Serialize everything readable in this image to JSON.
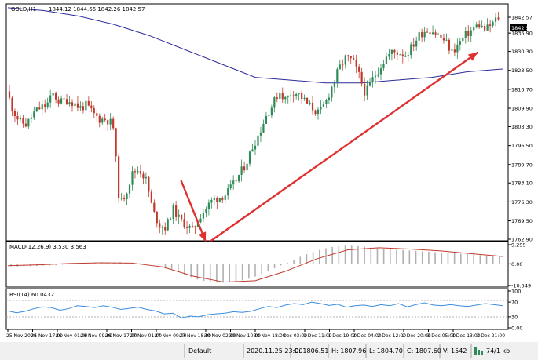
{
  "chart_data": [
    {
      "type": "candlestick",
      "header": {
        "symbol_tf": "GOLD,H1",
        "ohlc": "1844.12 1844.66 1842.26 1842.57"
      },
      "current_price": "1842.57",
      "price_axis": {
        "ticks": [
          "1842.57",
          "1836.90",
          "1830.30",
          "1823.50",
          "1816.70",
          "1809.90",
          "1803.30",
          "1796.50",
          "1789.70",
          "1783.10",
          "1776.30",
          "1769.50",
          "1762.90"
        ]
      },
      "time_axis": {
        "ticks": [
          "25 Nov 2020",
          "25 Nov 17:00",
          "26 Nov 01:00",
          "26 Nov 09:00",
          "26 Nov 17:00",
          "27 Nov 01:00",
          "27 Nov 09:00",
          "27 Nov 18:00",
          "30 Nov 02:00",
          "30 Nov 10:00",
          "30 Nov 18:00",
          "1 Dec 03:00",
          "1 Dec 11:00",
          "1 Dec 19:00",
          "2 Dec 04:00",
          "2 Dec 12:00",
          "2 Dec 20:00",
          "3 Dec 05:00",
          "3 Dec 13:00",
          "3 Dec 21:00"
        ]
      },
      "close_path": [
        1816,
        1809,
        1805,
        1804,
        1808,
        1810,
        1811,
        1815,
        1812,
        1813,
        1812,
        1810,
        1811,
        1808,
        1806,
        1806,
        1804,
        1775,
        1780,
        1787,
        1788,
        1784,
        1773,
        1768,
        1767,
        1774,
        1770,
        1768,
        1766,
        1771,
        1774,
        1777,
        1778,
        1779,
        1782,
        1786,
        1790,
        1796,
        1801,
        1807,
        1811,
        1816,
        1813,
        1816,
        1815,
        1812,
        1810,
        1808,
        1812,
        1818,
        1824,
        1828,
        1827,
        1822,
        1815,
        1820,
        1824,
        1828,
        1830,
        1830,
        1829,
        1832,
        1836,
        1838,
        1838,
        1836,
        1834,
        1830,
        1833,
        1836,
        1838,
        1840,
        1838,
        1840,
        1842.57
      ],
      "moving_average": {
        "color": "#2b2b9a",
        "values": [
          1846,
          1845,
          1843,
          1840,
          1836,
          1831,
          1826,
          1821,
          1820,
          1819,
          1819,
          1820,
          1821,
          1823,
          1824
        ]
      },
      "annotations": [
        {
          "kind": "arrow",
          "color": "#e03131",
          "from": [
            "27 Nov 18:00",
            1784
          ],
          "to": [
            "30 Nov 02:00",
            1762
          ],
          "meaning": "down"
        },
        {
          "kind": "arrow",
          "color": "#e03131",
          "from": [
            "30 Nov 02:00",
            1761
          ],
          "to": [
            "3 Dec 21:00",
            1830
          ],
          "meaning": "up"
        }
      ]
    },
    {
      "type": "histogram",
      "label": "MACD(12,26,9) 3.530 3.563",
      "ticks": [
        "9.299",
        "0.00",
        "-10.549"
      ],
      "ylim": [
        -10.549,
        9.299
      ],
      "histogram_values": [
        -1.2,
        -1.3,
        -1.2,
        -1.1,
        -1.0,
        -0.9,
        -0.8,
        -0.6,
        -0.4,
        -0.3,
        -0.1,
        0.1,
        0.3,
        0.4,
        0.5,
        0.6,
        0.7,
        0.8,
        0.6,
        0.4,
        0.3,
        0.1,
        -0.2,
        -0.6,
        -1.5,
        -2.5,
        -3.8,
        -5.2,
        -6.5,
        -7.6,
        -8.3,
        -8.8,
        -9.1,
        -9.2,
        -9.0,
        -8.6,
        -8.0,
        -7.2,
        -6.2,
        -5.0,
        -3.6,
        -2.2,
        -0.8,
        0.6,
        2.0,
        3.4,
        4.7,
        5.8,
        6.8,
        7.6,
        8.2,
        8.6,
        8.8,
        8.8,
        8.6,
        8.3,
        8.0,
        7.7,
        7.4,
        7.1,
        6.9,
        6.7,
        6.5,
        6.3,
        6.1,
        5.9,
        5.7,
        5.5,
        5.3,
        5.1,
        4.9,
        4.7,
        4.5,
        4.2,
        3.9,
        3.7,
        3.6
      ],
      "signal_color": "#c0392b",
      "signal_values": [
        -0.9,
        -0.5,
        0.2,
        0.5,
        0.4,
        -1.5,
        -6,
        -8.9,
        -8.2,
        -3.5,
        2.5,
        6.8,
        7.8,
        7.2,
        6.3,
        4.9,
        3.56
      ]
    },
    {
      "type": "line",
      "label": "RSI(14) 60.0432",
      "ticks": [
        "100",
        "70",
        "30",
        "0.00"
      ],
      "ylim": [
        0,
        100
      ],
      "color": "#3a8dde",
      "values": [
        46,
        41,
        45,
        52,
        57,
        55,
        48,
        52,
        60,
        58,
        55,
        60,
        56,
        50,
        53,
        56,
        50,
        46,
        38,
        40,
        27,
        32,
        30,
        36,
        38,
        40,
        44,
        42,
        45,
        52,
        58,
        55,
        62,
        66,
        63,
        70,
        66,
        61,
        64,
        56,
        60,
        62,
        58,
        63,
        60,
        66,
        57,
        63,
        68,
        62,
        60,
        63,
        60,
        58,
        62,
        66,
        63,
        60.04
      ]
    }
  ],
  "status_bar": {
    "default": "Default",
    "datetime": "2020.11.25 23:00",
    "open": "O: 1806.51",
    "high": "H: 1807.96",
    "low": "L: 1804.70",
    "close": "C: 1807.60",
    "volume": "V: 1542",
    "traffic": "74/1 kb"
  }
}
